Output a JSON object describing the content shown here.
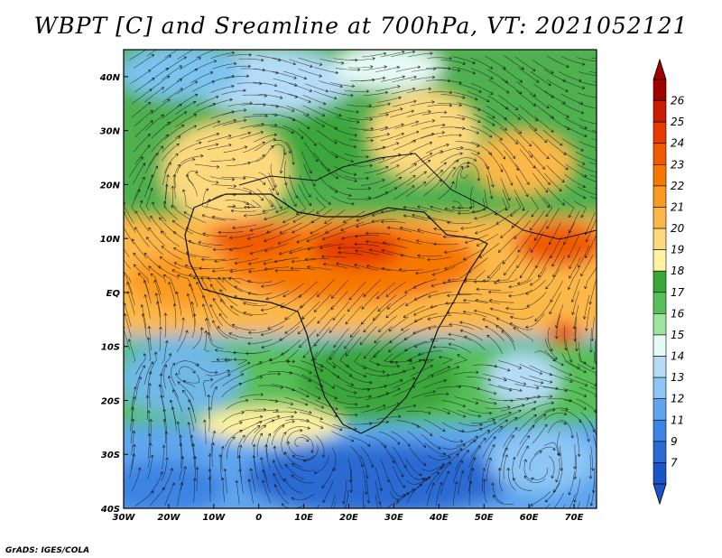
{
  "title": "WBPT [C] and Sreamline at 700hPa, VT: 2021052121",
  "credit": "GrADS: IGES/COLA",
  "map": {
    "lon_range": [
      -30,
      75
    ],
    "lat_range": [
      -40,
      45
    ],
    "lon_ticks": [
      "30W",
      "20W",
      "10W",
      "0",
      "10E",
      "20E",
      "30E",
      "40E",
      "50E",
      "60E",
      "70E"
    ],
    "lon_values": [
      -30,
      -20,
      -10,
      0,
      10,
      20,
      30,
      40,
      50,
      60,
      70
    ],
    "lat_ticks": [
      "40N",
      "30N",
      "20N",
      "10N",
      "EQ",
      "10S",
      "20S",
      "30S",
      "40S"
    ],
    "lat_values": [
      40,
      30,
      20,
      10,
      0,
      -10,
      -20,
      -30,
      -40
    ],
    "field": "wet-bulb potential temperature",
    "overlay": "streamlines"
  },
  "colorbar": {
    "labels": [
      "26",
      "25",
      "24",
      "23",
      "22",
      "21",
      "20",
      "19",
      "18",
      "17",
      "16",
      "15",
      "14",
      "13",
      "12",
      "11",
      "9",
      "7"
    ],
    "colors": [
      "#a00000",
      "#c81e00",
      "#e63c00",
      "#f05a00",
      "#f77800",
      "#fa9a20",
      "#fbb848",
      "#fdd97e",
      "#fff2a0",
      "#3aa63a",
      "#58c058",
      "#9ee39e",
      "#e6fbf5",
      "#b5dcf7",
      "#8dc6f5",
      "#5fa6ef",
      "#3d84e2",
      "#2a6ad2",
      "#1a55c5"
    ]
  }
}
